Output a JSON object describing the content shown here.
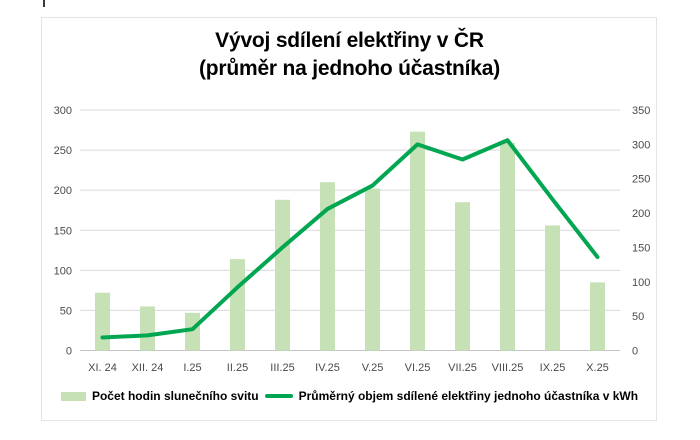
{
  "chart": {
    "title_line1": "Vývoj sdílení elektřiny v ČR",
    "title_line2": "(průměr na jednoho účastníka)",
    "colors": {
      "bar_fill": "#c7e1b6",
      "line": "#00a650",
      "grid": "#d9d9d9",
      "axis_line": "#c3c3c3",
      "frame_border": "#e4e4e4",
      "axis_text": "#4a4a4a",
      "title_text": "#000000"
    }
  },
  "chart_data": {
    "type": "bar",
    "subtype": "bar-and-line-dual-axis",
    "title": "Vývoj sdílení elektřiny v ČR (průměr na jednoho účastníka)",
    "categories": [
      "XI. 24",
      "XII. 24",
      "I.25",
      "II.25",
      "III.25",
      "IV.25",
      "V.25",
      "VI.25",
      "VII.25",
      "VIII.25",
      "IX.25",
      "X.25"
    ],
    "series": [
      {
        "name": "Počet hodin slunečního svitu",
        "type": "bar",
        "axis": "left",
        "values": [
          72,
          55,
          47,
          114,
          188,
          210,
          202,
          273,
          185,
          259,
          156,
          85
        ]
      },
      {
        "name": "Průměrný objem sdílené elektřiny jednoho účastníka v kWh",
        "type": "line",
        "axis": "right",
        "values": [
          19,
          22,
          31,
          92,
          150,
          206,
          240,
          300,
          278,
          306,
          220,
          136
        ]
      }
    ],
    "left_axis": {
      "min": 0,
      "max": 300,
      "step": 50,
      "ticks": [
        "0",
        "50",
        "100",
        "150",
        "200",
        "250",
        "300"
      ]
    },
    "right_axis": {
      "min": 0,
      "max": 350,
      "step": 50,
      "ticks": [
        "0",
        "50",
        "100",
        "150",
        "200",
        "250",
        "300",
        "350"
      ]
    },
    "xlabel": "",
    "ylabel": "",
    "grid": "horizontal",
    "legend_position": "bottom"
  },
  "legend": {
    "items": [
      {
        "label": "Počet hodin slunečního svitu",
        "swatch": "bar-swatch"
      },
      {
        "label": "Průměrný objem sdílené elektřiny jednoho účastníka v kWh",
        "swatch": "line-swatch"
      }
    ]
  }
}
